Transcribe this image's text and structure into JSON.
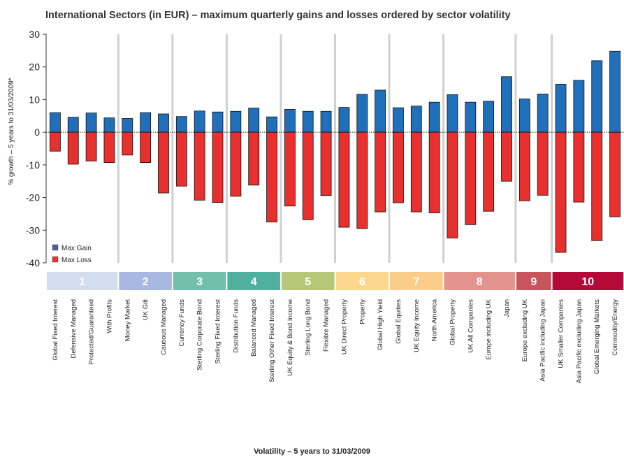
{
  "chart_data": {
    "type": "bar",
    "title": "International Sectors (in EUR) – maximum quarterly gains and losses ordered by sector volatility",
    "xlabel": "Volatility – 5 years to 31/03/2009",
    "ylabel": "% growth – 5 years to 31/03/2009*",
    "ylim": [
      -40,
      30
    ],
    "yticks": [
      30,
      20,
      10,
      0,
      -10,
      -20,
      -30,
      -40
    ],
    "legend_position": "bottom-left",
    "categories": [
      "Global Fixed Interest",
      "Defensive Managed",
      "Protected/Guaranteed",
      "With Profits",
      "Money Market",
      "UK Gilt",
      "Cautious Managed",
      "Currency Funds",
      "Sterling Corporate Bond",
      "Sterling Fixed Interest",
      "Distribution Funds",
      "Balanced Managed",
      "Sterling Other Fixed Interest",
      "UK Equity & Bond Income",
      "Sterling Long Bond",
      "Flexible Managed",
      "UK Direct Property",
      "Property",
      "Global High Yield",
      "Global Equities",
      "UK Equity Income",
      "North America",
      "Global Property",
      "UK All Companies",
      "Europe including UK",
      "Japan",
      "Europe excluding UK",
      "Asia Pacific including Japan",
      "UK Smaller Companies",
      "Asia Pacific excluding Japan",
      "Global Emerging Markets",
      "Commodity/Energy"
    ],
    "series": [
      {
        "name": "Max Gain",
        "color": "#1f6fba",
        "values": [
          6.0,
          4.6,
          5.9,
          4.4,
          4.2,
          6.0,
          5.6,
          4.8,
          6.5,
          6.2,
          6.4,
          7.4,
          4.7,
          7.0,
          6.4,
          6.4,
          7.6,
          11.6,
          12.9,
          7.5,
          8.0,
          9.2,
          11.5,
          9.2,
          9.5,
          17.0,
          10.2,
          11.7,
          14.7,
          15.9,
          21.9,
          24.8
        ]
      },
      {
        "name": "Max Loss",
        "color": "#e8302e",
        "values": [
          -5.8,
          -9.8,
          -8.8,
          -9.3,
          -7.0,
          -9.3,
          -18.6,
          -16.5,
          -20.8,
          -21.5,
          -19.6,
          -16.2,
          -27.5,
          -22.6,
          -26.8,
          -19.4,
          -29.1,
          -29.5,
          -24.4,
          -21.6,
          -24.4,
          -24.7,
          -32.4,
          -28.3,
          -24.2,
          -15.0,
          -21.0,
          -19.3,
          -36.8,
          -21.4,
          -33.2,
          -25.9
        ]
      }
    ],
    "volatility_bands": [
      {
        "label": "1",
        "count": 4,
        "color": "#d4dcf0"
      },
      {
        "label": "2",
        "count": 3,
        "color": "#a9b8e2"
      },
      {
        "label": "3",
        "count": 3,
        "color": "#72bfae"
      },
      {
        "label": "4",
        "count": 3,
        "color": "#4fb19d"
      },
      {
        "label": "5",
        "count": 3,
        "color": "#b6c778"
      },
      {
        "label": "6",
        "count": 3,
        "color": "#fbd88e"
      },
      {
        "label": "7",
        "count": 3,
        "color": "#fbcc8a"
      },
      {
        "label": "8",
        "count": 4,
        "color": "#e2938e"
      },
      {
        "label": "9",
        "count": 2,
        "color": "#c8555e"
      },
      {
        "label": "10",
        "count": 4,
        "color": "#b5093a"
      }
    ]
  }
}
